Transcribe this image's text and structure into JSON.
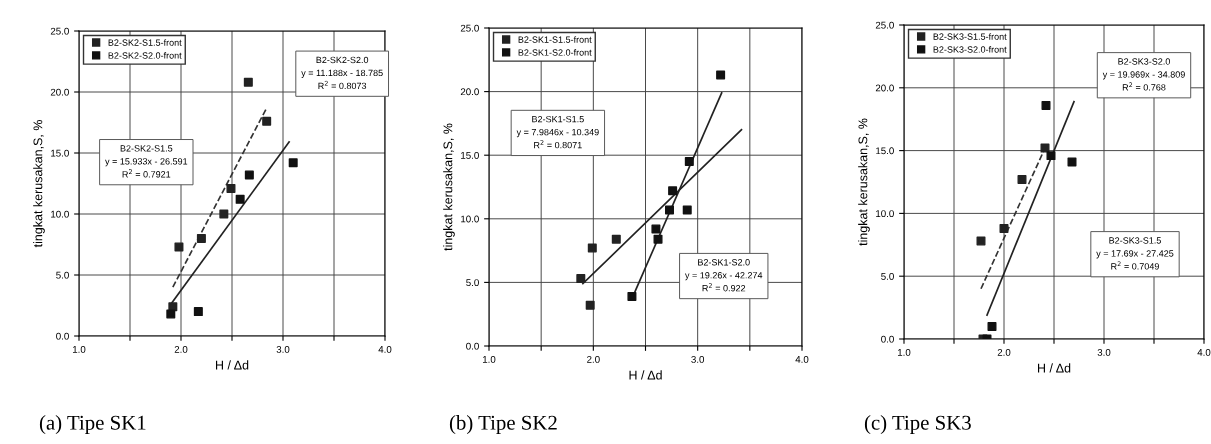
{
  "chart_data": [
    {
      "type": "scatter",
      "title": "(a) Tipe SK1",
      "xlabel": "H / Δd",
      "ylabel": "tingkat kerusakan,S, %",
      "xlim": [
        1.0,
        4.0
      ],
      "ylim": [
        0.0,
        25.0
      ],
      "xticks": [
        {
          "value": 1.0,
          "label": "1.0"
        },
        {
          "value": 1.5,
          "label": null
        },
        {
          "value": 2.0,
          "label": "2.0"
        },
        {
          "value": 2.5,
          "label": null
        },
        {
          "value": 3.0,
          "label": "3.0"
        },
        {
          "value": 3.5,
          "label": null
        },
        {
          "value": 4.0,
          "label": "4.0"
        }
      ],
      "yticks": [
        {
          "value": 0,
          "label": "0.0"
        },
        {
          "value": 5,
          "label": "5.0"
        },
        {
          "value": 10,
          "label": "10.0"
        },
        {
          "value": 15,
          "label": "15.0"
        },
        {
          "value": 20,
          "label": "20.0"
        },
        {
          "value": 25,
          "label": "25.0"
        }
      ],
      "grid": true,
      "legend": "top left",
      "marker": "square",
      "annotations": [
        "B2-SK2-S2.0\ny = 11.188x - 18.785\nR$^{2}$ = 0.8073",
        "B2-SK2-S1.5\ny = 15.933x - 26.591\nR$^{2}$ = 0.7921"
      ],
      "series": [
        {
          "name": "B2-SK2-S1.5-front",
          "color": "#222222",
          "x": [
            1.92,
            1.98,
            2.2,
            2.42,
            2.49,
            2.66,
            2.84
          ],
          "values": [
            2.4,
            7.3,
            8.0,
            10.0,
            12.1,
            20.8,
            17.6
          ]
        },
        {
          "name": "B2-SK2-S2.0-front",
          "color": "#111111",
          "x": [
            1.9,
            2.17,
            2.58,
            2.67,
            3.1
          ],
          "values": [
            1.8,
            2.0,
            11.2,
            13.2,
            14.2
          ]
        },
        {
          "type": "line",
          "line_style": "dashed",
          "marker": "none",
          "color": "#333333",
          "x": [
            1.92,
            2.84
          ],
          "values": [
            4.0,
            18.7
          ]
        },
        {
          "type": "line",
          "line_style": "solid",
          "marker": "none",
          "color": "#222222",
          "x": [
            1.9,
            3.06
          ],
          "values": [
            2.6,
            15.9
          ]
        }
      ]
    },
    {
      "type": "scatter",
      "title": "(b) Tipe SK2",
      "xlabel": "H / Δd",
      "ylabel": "tingkat kerusakan,S, %",
      "xlim": [
        1.0,
        4.0
      ],
      "ylim": [
        0.0,
        25.0
      ],
      "xticks": [
        {
          "value": 1.0,
          "label": "1.0"
        },
        {
          "value": 1.5,
          "label": null
        },
        {
          "value": 2.0,
          "label": "2.0"
        },
        {
          "value": 2.5,
          "label": null
        },
        {
          "value": 3.0,
          "label": "3.0"
        },
        {
          "value": 3.5,
          "label": null
        },
        {
          "value": 4.0,
          "label": "4.0"
        }
      ],
      "yticks": [
        {
          "value": 0,
          "label": "0.0"
        },
        {
          "value": 5,
          "label": "5.0"
        },
        {
          "value": 10,
          "label": "10.0"
        },
        {
          "value": 15,
          "label": "15.0"
        },
        {
          "value": 20,
          "label": "20.0"
        },
        {
          "value": 25,
          "label": "25.0"
        }
      ],
      "grid": true,
      "legend": "top left",
      "marker": "square",
      "annotations": [
        "B2-SK1-S1.5\ny = 7.9846x - 10.349\nR$^{2}$ = 0.8071",
        "B2-SK1-S2.0\ny = 19.26x - 42.274\nR$^{2}$ = 0.922"
      ],
      "series": [
        {
          "name": "B2-SK1-S1.5-front",
          "color": "#222222",
          "x": [
            1.88,
            1.97,
            1.99,
            2.22
          ],
          "values": [
            5.3,
            3.2,
            7.7,
            8.4
          ]
        },
        {
          "name": "B2-SK1-S2.0-front",
          "color": "#111111",
          "x": [
            2.37,
            2.6,
            2.62,
            2.73,
            2.76,
            2.9,
            2.92,
            3.22
          ],
          "values": [
            3.9,
            9.2,
            8.4,
            10.7,
            12.2,
            10.7,
            14.5,
            21.3
          ]
        },
        {
          "type": "line",
          "line_style": "solid",
          "marker": "none",
          "color": "#222222",
          "x": [
            1.9,
            3.42
          ],
          "values": [
            4.9,
            17.0
          ]
        },
        {
          "type": "line",
          "line_style": "solid",
          "marker": "none",
          "color": "#222222",
          "x": [
            2.39,
            3.23
          ],
          "values": [
            4.1,
            19.9
          ]
        }
      ]
    },
    {
      "type": "scatter",
      "title": "(c) Tipe SK3",
      "xlabel": "H / Δd",
      "ylabel": "tingkat kerusakan,S, %",
      "xlim": [
        1.0,
        4.0
      ],
      "ylim": [
        0.0,
        25.0
      ],
      "xticks": [
        {
          "value": 1.0,
          "label": "1.0"
        },
        {
          "value": 1.5,
          "label": null
        },
        {
          "value": 2.0,
          "label": "2.0"
        },
        {
          "value": 2.5,
          "label": null
        },
        {
          "value": 3.0,
          "label": "3.0"
        },
        {
          "value": 3.5,
          "label": null
        },
        {
          "value": 4.0,
          "label": "4.0"
        }
      ],
      "yticks": [
        {
          "value": 0,
          "label": "0.0"
        },
        {
          "value": 5,
          "label": "5.0"
        },
        {
          "value": 10,
          "label": "10.0"
        },
        {
          "value": 15,
          "label": "15.0"
        },
        {
          "value": 20,
          "label": "20.0"
        },
        {
          "value": 25,
          "label": "25.0"
        }
      ],
      "grid": true,
      "legend": "top left",
      "marker": "square",
      "annotations": [
        "B2-SK3-S2.0\ny = 19.969x - 34.809\nR$^{2}$ = 0.768",
        "B2-SK3-S1.5\ny = 17.69x - 27.425\nR$^{2}$ = 0.7049"
      ],
      "series": [
        {
          "name": "B2-SK3-S1.5-front",
          "color": "#222222",
          "x": [
            1.77,
            1.79,
            2.0,
            2.18,
            2.41
          ],
          "values": [
            7.8,
            0.0,
            8.8,
            12.7,
            15.2
          ]
        },
        {
          "name": "B2-SK3-S2.0-front",
          "color": "#111111",
          "x": [
            1.83,
            1.88,
            2.42,
            2.47,
            2.68
          ],
          "values": [
            0.0,
            1.0,
            18.6,
            14.6,
            14.1
          ]
        },
        {
          "type": "line",
          "line_style": "dashed",
          "marker": "none",
          "color": "#333333",
          "x": [
            1.77,
            2.41
          ],
          "values": [
            4.0,
            15.2
          ]
        },
        {
          "type": "line",
          "line_style": "solid",
          "marker": "none",
          "color": "#222222",
          "x": [
            1.83,
            2.7
          ],
          "values": [
            1.9,
            18.9
          ]
        }
      ]
    }
  ]
}
